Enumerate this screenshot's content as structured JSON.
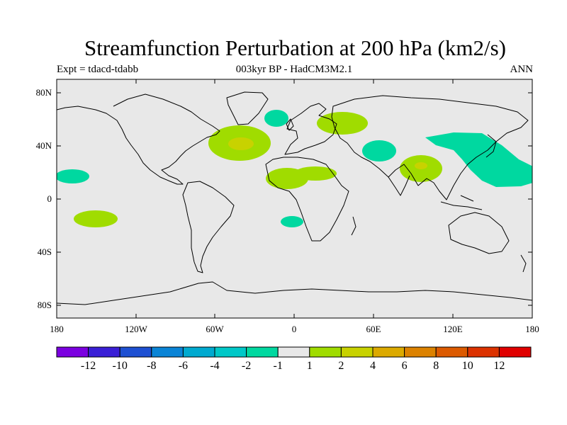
{
  "title": "Streamfunction Perturbation at 200 hPa (km2/s)",
  "left_label": "Expt = tdacd-tdabb",
  "center_label": "003kyr BP - HadCM3M2.1",
  "right_label": "ANN",
  "lat_ticks": [
    "80N",
    "40N",
    "0",
    "40S",
    "80S"
  ],
  "lon_ticks": [
    "180",
    "120W",
    "60W",
    "0",
    "60E",
    "120E",
    "180"
  ],
  "colorbar": {
    "colors": [
      "#7b00e0",
      "#3a1fd6",
      "#1e50d2",
      "#0a84d6",
      "#00aad0",
      "#00c8c8",
      "#00d8a0",
      "#e8e8e8",
      "#a0dc00",
      "#c8d200",
      "#dcaa00",
      "#dc8200",
      "#dc5a00",
      "#dc3200",
      "#e00000"
    ],
    "labels": [
      "-12",
      "-10",
      "-8",
      "-6",
      "-4",
      "-2",
      "-1",
      "1",
      "2",
      "4",
      "6",
      "8",
      "10",
      "12"
    ]
  },
  "chart_data": {
    "type": "contour-map",
    "title": "Streamfunction Perturbation at 200 hPa (km2/s)",
    "units": "km2/s",
    "experiment": "tdacd-tdabb",
    "period": "003kyr BP",
    "model": "HadCM3M2.1",
    "season": "ANN",
    "lon_range": [
      -180,
      180
    ],
    "lat_range": [
      -90,
      90
    ],
    "levels": [
      -12,
      -10,
      -8,
      -6,
      -4,
      -2,
      -1,
      1,
      2,
      4,
      6,
      8,
      10,
      12
    ],
    "features": [
      {
        "region": "North Atlantic",
        "lon": -38,
        "lat": 40,
        "level_range": [
          1,
          4
        ]
      },
      {
        "region": "Tropical Atlantic / West Africa",
        "lon": -10,
        "lat": 15,
        "level_range": [
          1,
          2
        ]
      },
      {
        "region": "Eastern Europe / Russia",
        "lon": 35,
        "lat": 58,
        "level_range": [
          1,
          2
        ]
      },
      {
        "region": "Southeast Asia / Bay of Bengal",
        "lon": 95,
        "lat": 22,
        "level_range": [
          1,
          4
        ]
      },
      {
        "region": "South Pacific",
        "lon": -150,
        "lat": -15,
        "level_range": [
          1,
          2
        ]
      },
      {
        "region": "Northwest Pacific / East Asia",
        "lon": 140,
        "lat": 30,
        "level_range": [
          -2,
          -1
        ]
      },
      {
        "region": "Middle East",
        "lon": 60,
        "lat": 38,
        "level_range": [
          -2,
          -1
        ]
      },
      {
        "region": "Central Pacific",
        "lon": -165,
        "lat": 17,
        "level_range": [
          -2,
          -1
        ]
      },
      {
        "region": "Greenland Sea / Iceland",
        "lon": -13,
        "lat": 64,
        "level_range": [
          -2,
          -1
        ]
      },
      {
        "region": "South Atlantic",
        "lon": -1,
        "lat": -18,
        "level_range": [
          -2,
          -1
        ]
      }
    ]
  }
}
